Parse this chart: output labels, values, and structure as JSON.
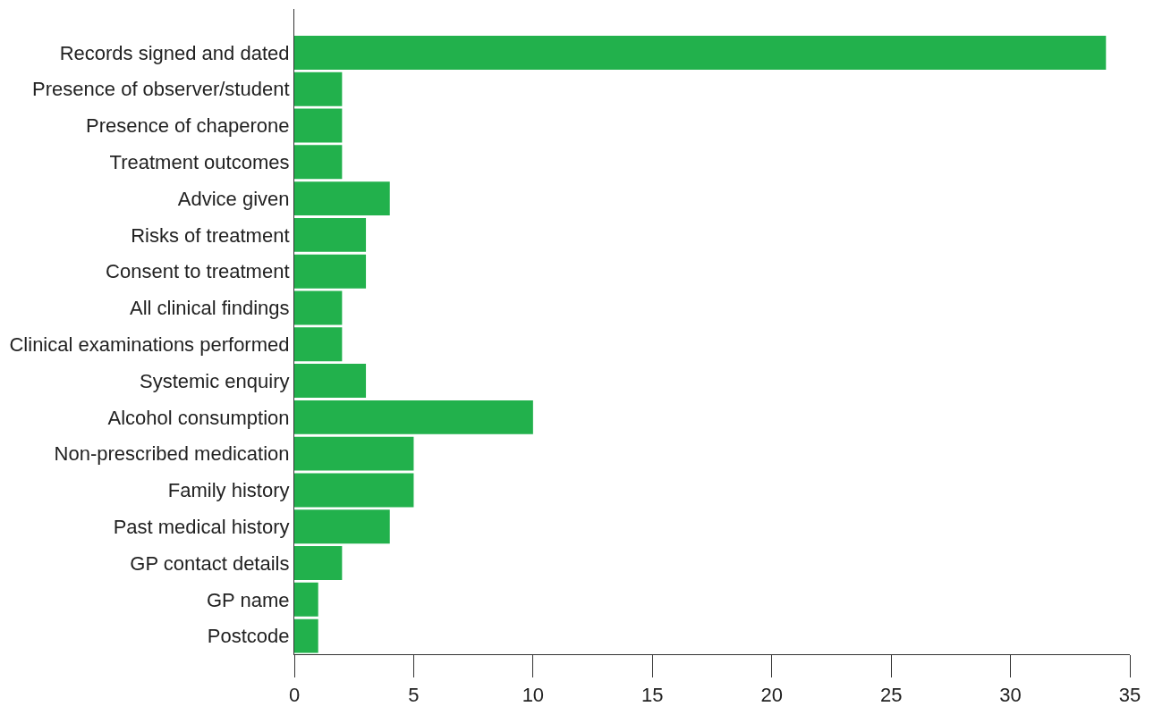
{
  "chart_data": {
    "type": "bar",
    "orientation": "horizontal",
    "categories": [
      "Records signed and dated",
      "Presence of observer/student",
      "Presence of chaperone",
      "Treatment outcomes",
      "Advice given",
      "Risks of treatment",
      "Consent to treatment",
      "All clinical findings",
      "Clinical examinations performed",
      "Systemic enquiry",
      "Alcohol consumption",
      "Non-prescribed medication",
      "Family history",
      "Past medical history",
      "GP contact details",
      "GP name",
      "Postcode"
    ],
    "values": [
      34,
      2,
      2,
      2,
      4,
      3,
      3,
      2,
      2,
      3,
      10,
      5,
      5,
      4,
      2,
      1,
      1
    ],
    "color": "#22b14c",
    "xlim": [
      0,
      35
    ],
    "xticks": [
      0,
      5,
      10,
      15,
      20,
      25,
      30,
      35
    ]
  }
}
